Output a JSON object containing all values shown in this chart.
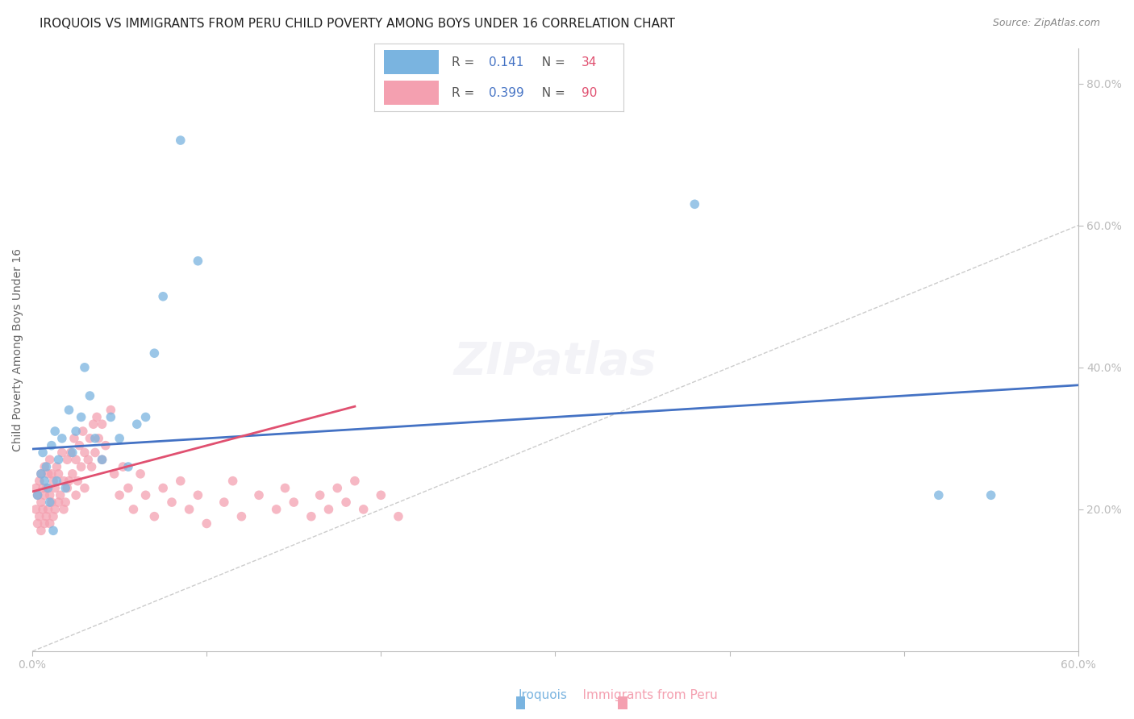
{
  "title": "IROQUOIS VS IMMIGRANTS FROM PERU CHILD POVERTY AMONG BOYS UNDER 16 CORRELATION CHART",
  "source": "Source: ZipAtlas.com",
  "ylabel": "Child Poverty Among Boys Under 16",
  "xlim": [
    0,
    0.6
  ],
  "ylim": [
    0.0,
    0.85
  ],
  "xtick_positions": [
    0.0,
    0.1,
    0.2,
    0.3,
    0.4,
    0.5,
    0.6
  ],
  "xtick_labels": [
    "0.0%",
    "",
    "",
    "",
    "",
    "",
    "60.0%"
  ],
  "ytick_positions_right": [
    0.2,
    0.4,
    0.6,
    0.8
  ],
  "ytick_labels_right": [
    "20.0%",
    "40.0%",
    "60.0%",
    "80.0%"
  ],
  "diagonal_color": "#cccccc",
  "iroquois_color": "#7ab4e0",
  "peru_color": "#f4a0b0",
  "iroquois_trend_color": "#4472c4",
  "peru_trend_color": "#e05070",
  "dot_size": 70,
  "dot_alpha": 0.75,
  "background_color": "#ffffff",
  "grid_color": "#d8d8d8",
  "axis_label_color": "#4472c4",
  "title_color": "#222222",
  "legend_r_color": "#4472c4",
  "legend_n_color": "#e05070",
  "title_fontsize": 11,
  "source_fontsize": 9,
  "iroquois_r": "0.141",
  "iroquois_n": "34",
  "peru_r": "0.399",
  "peru_n": "90",
  "iroquois_trend_x": [
    0.0,
    0.6
  ],
  "iroquois_trend_y": [
    0.285,
    0.375
  ],
  "peru_trend_x": [
    0.0,
    0.185
  ],
  "peru_trend_y": [
    0.225,
    0.345
  ],
  "iroquois_points_x": [
    0.003,
    0.005,
    0.006,
    0.007,
    0.008,
    0.009,
    0.01,
    0.011,
    0.012,
    0.013,
    0.014,
    0.015,
    0.017,
    0.019,
    0.021,
    0.023,
    0.025,
    0.028,
    0.03,
    0.033,
    0.036,
    0.04,
    0.045,
    0.05,
    0.055,
    0.06,
    0.065,
    0.07,
    0.075,
    0.085,
    0.095,
    0.38,
    0.52,
    0.55
  ],
  "iroquois_points_y": [
    0.22,
    0.25,
    0.28,
    0.24,
    0.26,
    0.23,
    0.21,
    0.29,
    0.17,
    0.31,
    0.24,
    0.27,
    0.3,
    0.23,
    0.34,
    0.28,
    0.31,
    0.33,
    0.4,
    0.36,
    0.3,
    0.27,
    0.33,
    0.3,
    0.26,
    0.32,
    0.33,
    0.42,
    0.5,
    0.72,
    0.55,
    0.63,
    0.22,
    0.22
  ],
  "peru_points_x": [
    0.002,
    0.002,
    0.003,
    0.003,
    0.004,
    0.004,
    0.005,
    0.005,
    0.005,
    0.006,
    0.006,
    0.007,
    0.007,
    0.007,
    0.008,
    0.008,
    0.009,
    0.009,
    0.01,
    0.01,
    0.01,
    0.011,
    0.011,
    0.012,
    0.012,
    0.013,
    0.013,
    0.014,
    0.015,
    0.015,
    0.016,
    0.017,
    0.018,
    0.018,
    0.019,
    0.02,
    0.02,
    0.021,
    0.022,
    0.023,
    0.024,
    0.025,
    0.025,
    0.026,
    0.027,
    0.028,
    0.029,
    0.03,
    0.03,
    0.032,
    0.033,
    0.034,
    0.035,
    0.036,
    0.037,
    0.038,
    0.04,
    0.04,
    0.042,
    0.045,
    0.047,
    0.05,
    0.052,
    0.055,
    0.058,
    0.062,
    0.065,
    0.07,
    0.075,
    0.08,
    0.085,
    0.09,
    0.095,
    0.1,
    0.11,
    0.115,
    0.12,
    0.13,
    0.14,
    0.145,
    0.15,
    0.16,
    0.165,
    0.17,
    0.175,
    0.18,
    0.185,
    0.19,
    0.2,
    0.21
  ],
  "peru_points_y": [
    0.2,
    0.23,
    0.18,
    0.22,
    0.19,
    0.24,
    0.17,
    0.21,
    0.25,
    0.2,
    0.23,
    0.18,
    0.22,
    0.26,
    0.19,
    0.23,
    0.2,
    0.25,
    0.18,
    0.22,
    0.27,
    0.21,
    0.25,
    0.19,
    0.24,
    0.2,
    0.23,
    0.26,
    0.21,
    0.25,
    0.22,
    0.28,
    0.2,
    0.24,
    0.21,
    0.23,
    0.27,
    0.24,
    0.28,
    0.25,
    0.3,
    0.22,
    0.27,
    0.24,
    0.29,
    0.26,
    0.31,
    0.23,
    0.28,
    0.27,
    0.3,
    0.26,
    0.32,
    0.28,
    0.33,
    0.3,
    0.27,
    0.32,
    0.29,
    0.34,
    0.25,
    0.22,
    0.26,
    0.23,
    0.2,
    0.25,
    0.22,
    0.19,
    0.23,
    0.21,
    0.24,
    0.2,
    0.22,
    0.18,
    0.21,
    0.24,
    0.19,
    0.22,
    0.2,
    0.23,
    0.21,
    0.19,
    0.22,
    0.2,
    0.23,
    0.21,
    0.24,
    0.2,
    0.22,
    0.19
  ]
}
